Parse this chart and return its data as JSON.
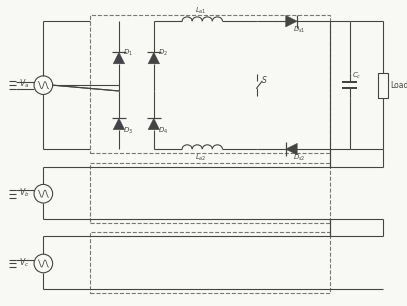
{
  "bg_color": "#f8f8f5",
  "line_color": "#444444",
  "dashed_color": "#777777",
  "lw": 0.8,
  "fig_w": 4.07,
  "fig_h": 3.06,
  "dpi": 100,
  "xlim": [
    0,
    10.2
  ],
  "ylim": [
    0,
    7.8
  ]
}
